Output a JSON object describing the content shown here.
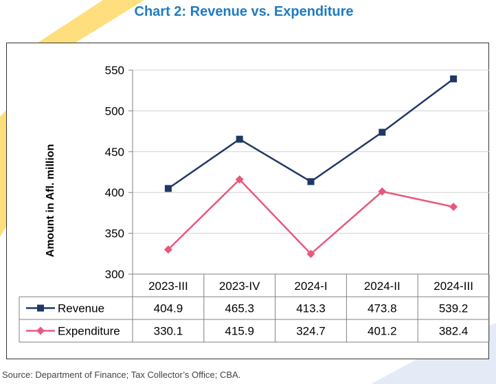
{
  "title": "Chart 2: Revenue vs. Expenditure",
  "source": "Source: Department of Finance; Tax Collector’s Office; CBA.",
  "colors": {
    "title": "#1f7bc0",
    "revenue": "#1f3864",
    "expenditure": "#e8587c",
    "grid": "#d0d0d0",
    "axis": "#808080",
    "decor_yellow": "#ffd966",
    "decor_blue": "#d9e2f3"
  },
  "chart_data": {
    "type": "line",
    "title": "Chart 2: Revenue vs. Expenditure",
    "ylabel": "Amount in Afl. million",
    "xlabel": "",
    "ylim": [
      300,
      550
    ],
    "yticks": [
      "300",
      "350",
      "400",
      "450",
      "500",
      "550"
    ],
    "grid": true,
    "legend": "data-table",
    "categories": [
      "2023-III",
      "2023-IV",
      "2024-I",
      "2024-II",
      "2024-III"
    ],
    "series": [
      {
        "name": "Revenue",
        "values": [
          404.9,
          465.3,
          413.3,
          473.8,
          539.2
        ],
        "labels": [
          "404.9",
          "465.3",
          "413.3",
          "473.8",
          "539.2"
        ],
        "marker": "square",
        "color": "#1f3864"
      },
      {
        "name": "Expenditure",
        "values": [
          330.1,
          415.9,
          324.7,
          401.2,
          382.4
        ],
        "labels": [
          "330.1",
          "415.9",
          "324.7",
          "401.2",
          "382.4"
        ],
        "marker": "diamond",
        "color": "#e8587c"
      }
    ]
  }
}
